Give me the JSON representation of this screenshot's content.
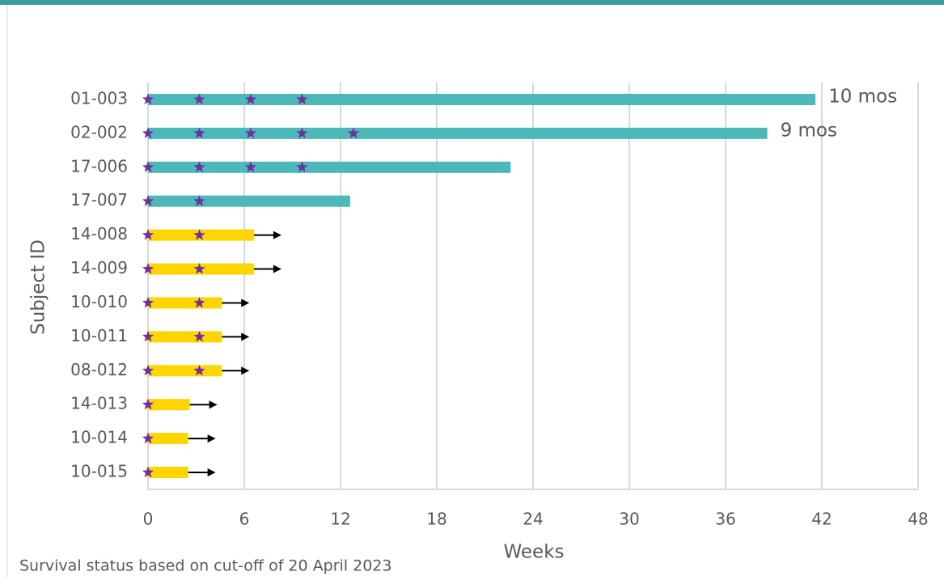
{
  "chart_data": {
    "type": "swimmer",
    "x_label": "Weeks",
    "y_label": "Subject ID",
    "footnote": "Survival status based on cut-off of 20 April 2023",
    "categories": [
      "01-003",
      "02-002",
      "17-006",
      "17-007",
      "14-008",
      "14-009",
      "10-010",
      "10-011",
      "08-012",
      "14-013",
      "10-014",
      "10-015"
    ],
    "values": [
      41.6,
      38.6,
      22.6,
      12.6,
      6.6,
      6.6,
      4.6,
      4.6,
      4.6,
      2.6,
      2.5,
      2.5
    ],
    "colors": [
      "#4db8ba",
      "#4db8ba",
      "#4db8ba",
      "#4db8ba",
      "#ffd500",
      "#ffd500",
      "#ffd500",
      "#ffd500",
      "#ffd500",
      "#ffd500",
      "#ffd500",
      "#ffd500"
    ],
    "ongoing": [
      false,
      false,
      false,
      false,
      true,
      true,
      true,
      true,
      true,
      true,
      true,
      true
    ],
    "stars": [
      [
        0,
        3.2,
        6.4,
        9.6
      ],
      [
        0,
        3.2,
        6.4,
        9.6,
        12.8
      ],
      [
        0,
        3.2,
        6.4,
        9.6
      ],
      [
        0,
        3.2
      ],
      [
        0,
        3.2
      ],
      [
        0,
        3.2
      ],
      [
        0,
        3.2
      ],
      [
        0,
        3.2
      ],
      [
        0,
        3.2
      ],
      [
        0
      ],
      [
        0
      ],
      [
        0
      ]
    ],
    "star_color": "#7030a0",
    "bar_labels": [
      "10 mos",
      "9 mos",
      null,
      null,
      null,
      null,
      null,
      null,
      null,
      null,
      null,
      null
    ],
    "xlim": [
      0,
      48
    ],
    "xticks": [
      0,
      6,
      12,
      18,
      24,
      30,
      36,
      42,
      48
    ],
    "grid": true
  }
}
